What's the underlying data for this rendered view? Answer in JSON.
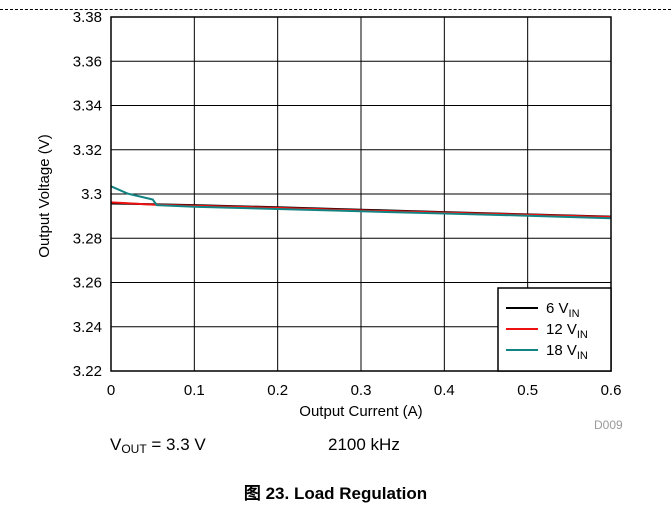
{
  "chart_data": {
    "type": "line",
    "xlabel": "Output Current (A)",
    "ylabel": "Output Voltage (V)",
    "xlim": [
      0,
      0.6
    ],
    "ylim": [
      3.22,
      3.38
    ],
    "xticks": [
      0,
      0.1,
      0.2,
      0.3,
      0.4,
      0.5,
      0.6
    ],
    "xtick_labels": [
      "0",
      "0.1",
      "0.2",
      "0.3",
      "0.4",
      "0.5",
      "0.6"
    ],
    "yticks": [
      3.22,
      3.24,
      3.26,
      3.28,
      3.3,
      3.32,
      3.34,
      3.36,
      3.38
    ],
    "ytick_labels": [
      "3.22",
      "3.24",
      "3.26",
      "3.28",
      "3.3",
      "3.32",
      "3.34",
      "3.36",
      "3.38"
    ],
    "grid": true,
    "legend_position": "bottom-right",
    "series": [
      {
        "name": "6",
        "sub": "IN",
        "color": "#000000",
        "x": [
          0,
          0.05,
          0.1,
          0.2,
          0.3,
          0.4,
          0.5,
          0.6
        ],
        "y": [
          3.2957,
          3.2954,
          3.295,
          3.294,
          3.2929,
          3.2918,
          3.2908,
          3.2898
        ]
      },
      {
        "name": "12",
        "sub": "IN",
        "color": "#ee1111",
        "x": [
          0,
          0.05,
          0.1,
          0.2,
          0.3,
          0.4,
          0.5,
          0.6
        ],
        "y": [
          3.2962,
          3.2952,
          3.2947,
          3.2937,
          3.2926,
          3.2916,
          3.2906,
          3.2896
        ]
      },
      {
        "name": "18",
        "sub": "IN",
        "color": "#138383",
        "x": [
          0,
          0.02,
          0.05,
          0.055,
          0.1,
          0.2,
          0.3,
          0.4,
          0.5,
          0.6
        ],
        "y": [
          3.3035,
          3.3002,
          3.2975,
          3.295,
          3.2942,
          3.2932,
          3.2922,
          3.2912,
          3.2902,
          3.289
        ]
      }
    ]
  },
  "legend_suffix": " V",
  "conditions": {
    "vout_prefix": "V",
    "vout_sub": "OUT",
    "vout_value": " = 3.3 V",
    "freq": "2100 kHz"
  },
  "caption": "图 23. Load Regulation",
  "figure_code": "D009"
}
